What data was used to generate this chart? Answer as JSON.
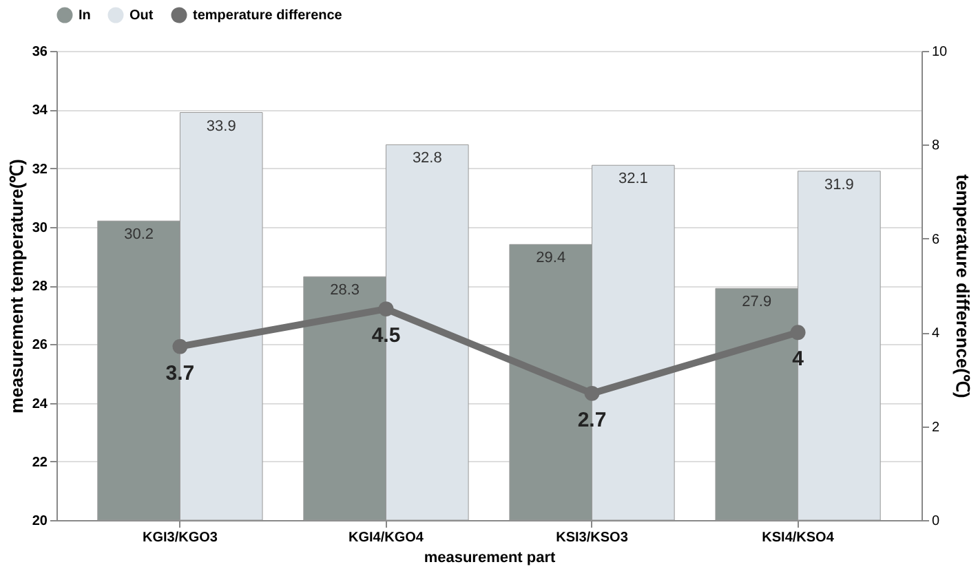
{
  "chart_data": {
    "type": "bar",
    "xlabel": "measurement part",
    "ylabel": "measurement temperature(℃)",
    "y2label": "temperature difference(℃)",
    "categories": [
      "KGI3/KGO3",
      "KGI4/KGO4",
      "KSI3/KSO3",
      "KSI4/KSO4"
    ],
    "series": [
      {
        "name": "In",
        "color": "#8c9693",
        "values": [
          30.2,
          28.3,
          29.4,
          27.9
        ]
      },
      {
        "name": "Out",
        "color": "#dde4ea",
        "values": [
          33.9,
          32.8,
          32.1,
          31.9
        ]
      },
      {
        "name": "temperature difference",
        "type": "line",
        "axis": "y2",
        "color": "#6f6f6f",
        "values": [
          3.7,
          4.5,
          2.7,
          4
        ]
      }
    ],
    "ylim": [
      20,
      36
    ],
    "yticks": [
      20,
      22,
      24,
      26,
      28,
      30,
      32,
      34,
      36
    ],
    "y2lim": [
      0,
      10
    ],
    "y2ticks": [
      0,
      2,
      4,
      6,
      8,
      10
    ],
    "data_labels": true,
    "grid": "y",
    "legend": "top",
    "marker": "circle",
    "line_style": "solid"
  }
}
